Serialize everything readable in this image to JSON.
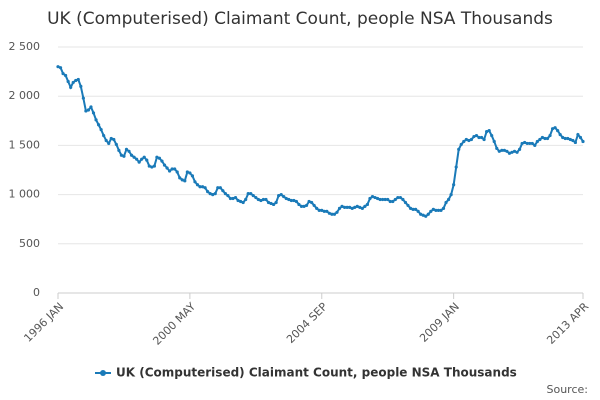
{
  "chart_data": {
    "type": "line",
    "title": "UK (Computerised) Claimant Count, people NSA Thousands",
    "source": "Source:",
    "categories": [
      "1996 JAN",
      null,
      null,
      null,
      null,
      null,
      null,
      null,
      null,
      null,
      null,
      null,
      null,
      null,
      null,
      null,
      null,
      null,
      null,
      null,
      null,
      null,
      null,
      null,
      null,
      null,
      null,
      null,
      null,
      null,
      null,
      null,
      null,
      null,
      null,
      null,
      null,
      null,
      null,
      null,
      null,
      null,
      null,
      null,
      null,
      null,
      null,
      null,
      null,
      null,
      null,
      null,
      "2000 MAY",
      null,
      null,
      null,
      null,
      null,
      null,
      null,
      null,
      null,
      null,
      null,
      null,
      null,
      null,
      null,
      null,
      null,
      null,
      null,
      null,
      null,
      null,
      null,
      null,
      null,
      null,
      null,
      null,
      null,
      null,
      null,
      null,
      null,
      null,
      null,
      null,
      null,
      null,
      null,
      null,
      null,
      null,
      null,
      null,
      null,
      null,
      null,
      null,
      null,
      null,
      null,
      "2004 SEP",
      null,
      null,
      null,
      null,
      null,
      null,
      null,
      null,
      null,
      null,
      null,
      null,
      null,
      null,
      null,
      null,
      null,
      null,
      null,
      null,
      null,
      null,
      null,
      null,
      null,
      null,
      null,
      null,
      null,
      null,
      null,
      null,
      null,
      null,
      null,
      null,
      null,
      null,
      null,
      null,
      null,
      null,
      null,
      null,
      null,
      null,
      null,
      null,
      null,
      null,
      null,
      "2009 JAN",
      null,
      null,
      null,
      null,
      null,
      null,
      null,
      null,
      null,
      null,
      null,
      null,
      null,
      null,
      null,
      null,
      null,
      null,
      null,
      null,
      null,
      null,
      null,
      null,
      null,
      null,
      null,
      null,
      null,
      null,
      null,
      null,
      null,
      null,
      null,
      null,
      null,
      null,
      null,
      null,
      null,
      null,
      null,
      null,
      null,
      null,
      null,
      null,
      null,
      null,
      "2013 APR"
    ],
    "series": [
      {
        "name": "UK (Computerised) Claimant Count, people NSA Thousands",
        "color": "#1a7ab8",
        "values": [
          2300,
          2290,
          2230,
          2210,
          2150,
          2090,
          2140,
          2160,
          2170,
          2100,
          1980,
          1850,
          1860,
          1890,
          1830,
          1760,
          1710,
          1660,
          1600,
          1550,
          1520,
          1570,
          1560,
          1510,
          1450,
          1400,
          1390,
          1460,
          1440,
          1400,
          1380,
          1360,
          1330,
          1360,
          1380,
          1350,
          1290,
          1280,
          1290,
          1380,
          1370,
          1340,
          1300,
          1270,
          1240,
          1260,
          1260,
          1230,
          1170,
          1150,
          1140,
          1230,
          1220,
          1190,
          1130,
          1100,
          1080,
          1080,
          1070,
          1030,
          1010,
          1000,
          1010,
          1070,
          1070,
          1040,
          1010,
          990,
          960,
          960,
          970,
          940,
          930,
          920,
          950,
          1010,
          1010,
          990,
          970,
          950,
          940,
          950,
          950,
          920,
          910,
          900,
          920,
          990,
          1000,
          980,
          960,
          950,
          940,
          940,
          930,
          900,
          880,
          880,
          890,
          930,
          920,
          890,
          860,
          840,
          840,
          830,
          830,
          810,
          800,
          800,
          820,
          860,
          880,
          870,
          870,
          870,
          860,
          870,
          880,
          870,
          860,
          880,
          900,
          960,
          980,
          970,
          960,
          950,
          950,
          950,
          950,
          930,
          930,
          950,
          970,
          970,
          950,
          920,
          890,
          860,
          850,
          850,
          830,
          800,
          790,
          780,
          800,
          830,
          850,
          840,
          840,
          840,
          860,
          920,
          950,
          1000,
          1100,
          1280,
          1460,
          1510,
          1540,
          1560,
          1550,
          1560,
          1590,
          1600,
          1580,
          1580,
          1560,
          1640,
          1650,
          1600,
          1540,
          1470,
          1440,
          1450,
          1450,
          1440,
          1420,
          1430,
          1440,
          1430,
          1460,
          1520,
          1530,
          1520,
          1520,
          1520,
          1500,
          1540,
          1560,
          1580,
          1570,
          1570,
          1600,
          1670,
          1680,
          1650,
          1610,
          1580,
          1570,
          1570,
          1560,
          1550,
          1530,
          1610,
          1580,
          1540
        ]
      }
    ],
    "ylim": [
      0,
      2500
    ],
    "yticks": [
      0,
      500,
      {
        "value": 1000,
        "label": "1 000"
      },
      {
        "value": 1500,
        "label": "1 500"
      },
      {
        "value": 2000,
        "label": "2 000"
      },
      {
        "value": 2500,
        "label": "2 500"
      }
    ],
    "grid": true
  }
}
